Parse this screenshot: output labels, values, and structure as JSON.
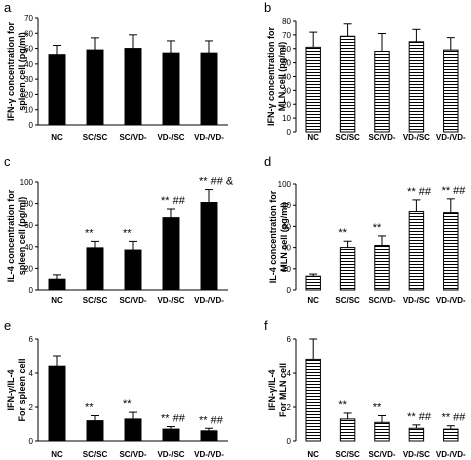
{
  "categories": [
    "NC",
    "SC/SC",
    "SC/VD-",
    "VD-/SC",
    "VD-/VD-"
  ],
  "chart_data": [
    {
      "type": "bar",
      "panel_label": "a",
      "ylabel_lines": [
        "IFN-γ concentration for",
        "spleen cell  (pg/ml)"
      ],
      "ylim": [
        0,
        70
      ],
      "yticks": [
        0,
        10,
        20,
        30,
        40,
        50,
        60,
        70
      ],
      "fill": "solid",
      "values": [
        46,
        49,
        50,
        47,
        47
      ],
      "errors": [
        6,
        8,
        9,
        8,
        8
      ],
      "annotations": [
        "",
        "",
        "",
        "",
        ""
      ]
    },
    {
      "type": "bar",
      "panel_label": "b",
      "ylabel_lines": [
        "IFN-γ concentration for",
        "MLN cell  (pg/ml)"
      ],
      "ylim": [
        0,
        80
      ],
      "yticks": [
        0,
        10,
        20,
        30,
        40,
        50,
        60,
        70,
        80
      ],
      "fill": "striped",
      "values": [
        61,
        69,
        58,
        65,
        59
      ],
      "errors": [
        11,
        9,
        13,
        9,
        9
      ],
      "annotations": [
        "",
        "",
        "",
        "",
        ""
      ]
    },
    {
      "type": "bar",
      "panel_label": "c",
      "ylabel_lines": [
        "IL-4 concentration for",
        "spleen cell  (pg/ml)"
      ],
      "ylim": [
        0,
        100
      ],
      "yticks": [
        0,
        20,
        40,
        60,
        80,
        100
      ],
      "fill": "solid",
      "values": [
        10,
        39,
        37,
        67,
        81
      ],
      "errors": [
        4,
        6,
        8,
        8,
        12
      ],
      "annotations": [
        "",
        "**",
        "**",
        "**  ##",
        "**  ##  &"
      ]
    },
    {
      "type": "bar",
      "panel_label": "d",
      "ylabel_lines": [
        "IL-4 concentration for",
        "MLN cell  (pg/ml)"
      ],
      "ylim": [
        0,
        100
      ],
      "yticks": [
        0,
        20,
        40,
        60,
        80,
        100
      ],
      "fill": "striped",
      "values": [
        13,
        40,
        42,
        74,
        73
      ],
      "errors": [
        2,
        6,
        9,
        11,
        13
      ],
      "annotations": [
        "",
        "**",
        "**",
        "**  ##",
        "**  ##"
      ]
    },
    {
      "type": "bar",
      "panel_label": "e",
      "ylabel_lines": [
        "IFN-γ/IL-4",
        "For spleen cell"
      ],
      "ylim": [
        0,
        6
      ],
      "yticks": [
        0,
        2,
        4,
        6
      ],
      "fill": "solid",
      "values": [
        4.4,
        1.2,
        1.3,
        0.7,
        0.6
      ],
      "errors": [
        0.6,
        0.3,
        0.4,
        0.15,
        0.15
      ],
      "annotations": [
        "",
        "**",
        "**",
        "**  ##",
        "**  ##"
      ]
    },
    {
      "type": "bar",
      "panel_label": "f",
      "ylabel_lines": [
        "IFN-γ/IL-4",
        "For MLN cell"
      ],
      "ylim": [
        0,
        6
      ],
      "yticks": [
        0,
        2,
        4,
        6
      ],
      "fill": "striped",
      "values": [
        4.8,
        1.3,
        1.1,
        0.75,
        0.7
      ],
      "errors": [
        1.2,
        0.35,
        0.4,
        0.2,
        0.2
      ],
      "annotations": [
        "",
        "**",
        "**",
        "**  ##",
        "**  ##"
      ]
    }
  ]
}
